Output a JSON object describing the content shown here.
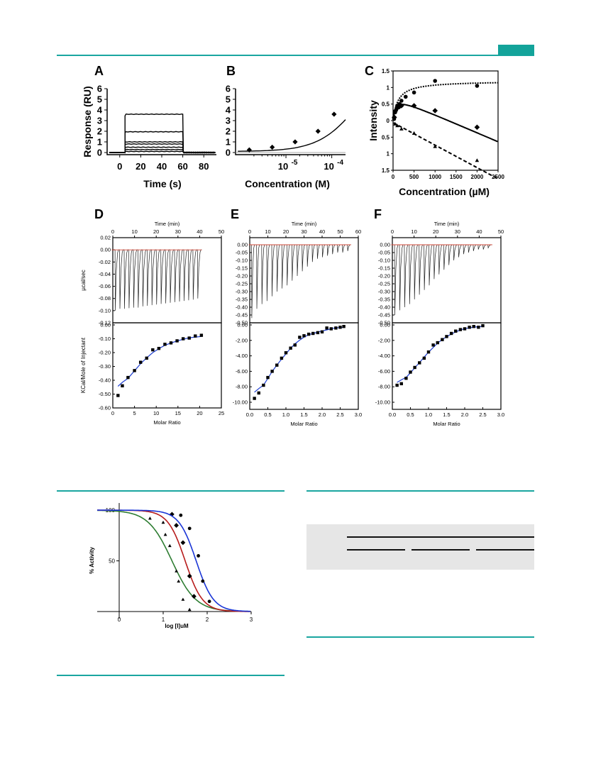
{
  "panels": {
    "A": {
      "letter": "A",
      "ylabel": "Response (RU)",
      "xlabel": "Time (s)"
    },
    "B": {
      "letter": "B",
      "xlabel": "Concentration (M)"
    },
    "C": {
      "letter": "C",
      "ylabel": "Intensity",
      "xlabel": "Concentration (µM)"
    },
    "D": {
      "letter": "D",
      "top_xlabel": "Time (min)",
      "top_ylabel": "µcal/sec",
      "bottom_ylabel": "KCal/Mole of Injectant",
      "bottom_xlabel": "Molar Ratio"
    },
    "E": {
      "letter": "E",
      "top_xlabel": "Time (min)",
      "bottom_xlabel": "Molar Ratio"
    },
    "F": {
      "letter": "F",
      "top_xlabel": "Time (min)",
      "bottom_xlabel": "Molar Ratio"
    },
    "G": {
      "ylabel": "% Activity",
      "xlabel": "log  [I]uM"
    }
  },
  "chart_data": [
    {
      "id": "A",
      "type": "line",
      "x_ticks": [
        "0",
        "20",
        "40",
        "60",
        "80"
      ],
      "y_ticks": [
        "0",
        "1",
        "2",
        "3",
        "4",
        "5",
        "6"
      ],
      "xlim": [
        -12,
        92
      ],
      "ylim": [
        -0.2,
        6
      ],
      "injection_window": [
        5,
        60
      ],
      "plateaus": [
        3.6,
        1.95,
        1.0,
        0.8,
        0.5,
        0.28,
        0.1
      ]
    },
    {
      "id": "B",
      "type": "scatter",
      "x_tick_labels": [
        "10 -5",
        "10 -4"
      ],
      "y_ticks": [
        "0",
        "1",
        "2",
        "3",
        "4",
        "5",
        "6"
      ],
      "log_x_range": [
        -6.1,
        -3.7
      ],
      "ylim": [
        -0.2,
        6
      ],
      "points": [
        [
          -5.8,
          0.25
        ],
        [
          -5.3,
          0.5
        ],
        [
          -4.8,
          1.0
        ],
        [
          -4.3,
          2.0
        ],
        [
          -3.95,
          3.6
        ]
      ]
    },
    {
      "id": "C",
      "type": "scatter",
      "x_ticks": [
        "0",
        "500",
        "1000",
        "1500",
        "2000",
        "2500"
      ],
      "y_ticks": [
        "1.5",
        "1",
        "0.5",
        "0",
        "0.5",
        "1",
        "1.5"
      ],
      "xlim": [
        0,
        2500
      ],
      "ylim": [
        -1.5,
        1.5
      ],
      "series": [
        {
          "marker": "circle",
          "points": [
            [
              25,
              0.05
            ],
            [
              50,
              0.25
            ],
            [
              100,
              0.45
            ],
            [
              150,
              0.5
            ],
            [
              200,
              0.6
            ],
            [
              300,
              0.72
            ],
            [
              500,
              0.85
            ],
            [
              1000,
              1.2
            ],
            [
              2000,
              1.05
            ]
          ]
        },
        {
          "marker": "diamond",
          "points": [
            [
              30,
              0.1
            ],
            [
              60,
              0.3
            ],
            [
              100,
              0.38
            ],
            [
              150,
              0.42
            ],
            [
              200,
              0.45
            ],
            [
              500,
              0.45
            ],
            [
              1000,
              0.3
            ],
            [
              2000,
              -0.2
            ]
          ]
        },
        {
          "marker": "triangle",
          "points": [
            [
              50,
              -0.1
            ],
            [
              100,
              -0.15
            ],
            [
              200,
              -0.25
            ],
            [
              500,
              -0.38
            ],
            [
              1000,
              -0.78
            ],
            [
              2000,
              -1.2
            ]
          ]
        }
      ]
    },
    {
      "id": "D",
      "type": "line",
      "top_x_ticks": [
        "0",
        "10",
        "20",
        "30",
        "40",
        "50"
      ],
      "top_y_ticks": [
        "0.02",
        "0.00",
        "-0.02",
        "-0.04",
        "-0.06",
        "-0.08",
        "-0.10",
        "-0.12"
      ],
      "bottom_x_ticks": [
        "0",
        "5",
        "10",
        "15",
        "20",
        "25"
      ],
      "bottom_y_ticks": [
        "0.00",
        "-0.10",
        "-0.20",
        "-0.30",
        "-0.40",
        "-0.50",
        "-0.60"
      ],
      "peaks": [
        -0.1,
        -0.097,
        -0.097,
        -0.096,
        -0.095,
        -0.095,
        -0.093,
        -0.092,
        -0.091,
        -0.09,
        -0.089,
        -0.088,
        -0.087,
        -0.086,
        -0.085,
        -0.084,
        -0.083,
        -0.082,
        -0.08
      ],
      "points": [
        [
          1.2,
          -0.51
        ],
        [
          2.2,
          -0.44
        ],
        [
          3.5,
          -0.38
        ],
        [
          5,
          -0.33
        ],
        [
          6.4,
          -0.27
        ],
        [
          7.8,
          -0.24
        ],
        [
          9.2,
          -0.18
        ],
        [
          10.6,
          -0.17
        ],
        [
          12,
          -0.14
        ],
        [
          13.4,
          -0.13
        ],
        [
          14.8,
          -0.115
        ],
        [
          16.2,
          -0.1
        ],
        [
          17.6,
          -0.095
        ],
        [
          19,
          -0.08
        ],
        [
          20.4,
          -0.075
        ]
      ]
    },
    {
      "id": "E",
      "type": "line",
      "top_x_ticks": [
        "0",
        "10",
        "20",
        "30",
        "40",
        "50",
        "60"
      ],
      "top_y_ticks": [
        "0.00",
        "-0.05",
        "-0.10",
        "-0.15",
        "-0.20",
        "-0.25",
        "-0.30",
        "-0.35",
        "-0.40",
        "-0.45",
        "-0.50"
      ],
      "bottom_x_ticks": [
        "0.0",
        "0.5",
        "1.0",
        "1.5",
        "2.0",
        "2.5",
        "3.0"
      ],
      "bottom_y_ticks": [
        "0.00",
        "-2.00",
        "-4.00",
        "-6.00",
        "-8.00",
        "-10.00"
      ],
      "peaks": [
        -0.47,
        -0.41,
        -0.38,
        -0.36,
        -0.33,
        -0.3,
        -0.28,
        -0.26,
        -0.23,
        -0.2,
        -0.17,
        -0.14,
        -0.11,
        -0.09,
        -0.08,
        -0.07,
        -0.06,
        -0.05,
        -0.05,
        -0.04
      ],
      "points": [
        [
          0.13,
          -9.5
        ],
        [
          0.25,
          -8.8
        ],
        [
          0.38,
          -7.8
        ],
        [
          0.5,
          -6.8
        ],
        [
          0.62,
          -6.0
        ],
        [
          0.75,
          -5.2
        ],
        [
          0.88,
          -4.3
        ],
        [
          1.0,
          -3.6
        ],
        [
          1.13,
          -3.0
        ],
        [
          1.25,
          -2.6
        ],
        [
          1.38,
          -1.6
        ],
        [
          1.5,
          -1.4
        ],
        [
          1.63,
          -1.2
        ],
        [
          1.75,
          -1.1
        ],
        [
          1.88,
          -1.0
        ],
        [
          2.0,
          -0.9
        ],
        [
          2.13,
          -0.4
        ],
        [
          2.25,
          -0.5
        ],
        [
          2.38,
          -0.4
        ],
        [
          2.5,
          -0.3
        ],
        [
          2.6,
          -0.2
        ]
      ]
    },
    {
      "id": "F",
      "type": "line",
      "top_x_ticks": [
        "0",
        "10",
        "20",
        "30",
        "40",
        "50"
      ],
      "top_y_ticks": [
        "0.00",
        "-0.05",
        "-0.10",
        "-0.15",
        "-0.20",
        "-0.25",
        "-0.30",
        "-0.35",
        "-0.40",
        "-0.45",
        "-0.50"
      ],
      "bottom_x_ticks": [
        "0.0",
        "0.5",
        "1.0",
        "1.5",
        "2.0",
        "2.5",
        "3.0"
      ],
      "bottom_y_ticks": [
        "0.00",
        "-2.00",
        "-4.00",
        "-6.00",
        "-8.00",
        "-10.00"
      ],
      "peaks": [
        -0.45,
        -0.42,
        -0.4,
        -0.38,
        -0.35,
        -0.32,
        -0.29,
        -0.26,
        -0.22,
        -0.19,
        -0.16,
        -0.13,
        -0.1,
        -0.08,
        -0.06,
        -0.05,
        -0.04,
        -0.03,
        -0.03,
        -0.02
      ],
      "points": [
        [
          0.13,
          -7.8
        ],
        [
          0.25,
          -7.6
        ],
        [
          0.38,
          -6.9
        ],
        [
          0.5,
          -6.1
        ],
        [
          0.62,
          -5.5
        ],
        [
          0.75,
          -4.9
        ],
        [
          0.88,
          -4.3
        ],
        [
          1.0,
          -3.5
        ],
        [
          1.13,
          -2.6
        ],
        [
          1.25,
          -2.3
        ],
        [
          1.38,
          -1.9
        ],
        [
          1.5,
          -1.5
        ],
        [
          1.63,
          -1.1
        ],
        [
          1.75,
          -0.8
        ],
        [
          1.88,
          -0.6
        ],
        [
          2.0,
          -0.5
        ],
        [
          2.13,
          -0.3
        ],
        [
          2.25,
          -0.2
        ],
        [
          2.38,
          -0.3
        ],
        [
          2.5,
          -0.1
        ]
      ]
    },
    {
      "id": "G",
      "type": "line",
      "x_ticks": [
        "0",
        "1",
        "2",
        "3"
      ],
      "y_ticks": [
        "100",
        "50"
      ],
      "xlim": [
        -0.5,
        3
      ],
      "ylim": [
        0,
        105
      ],
      "series": [
        {
          "color": "#2e7d32",
          "marker": "triangle",
          "ic50_log": 1.2,
          "hill": 1.6,
          "points": [
            [
              0.7,
              92
            ],
            [
              1.0,
              88
            ],
            [
              1.05,
              76
            ],
            [
              1.15,
              65
            ],
            [
              1.3,
              40
            ],
            [
              1.35,
              30
            ],
            [
              1.45,
              12
            ],
            [
              1.6,
              2
            ]
          ]
        },
        {
          "color": "#b71c1c",
          "marker": "diamond",
          "ic50_log": 1.5,
          "hill": 2.2,
          "points": [
            [
              1.2,
              96
            ],
            [
              1.3,
              85
            ],
            [
              1.45,
              68
            ],
            [
              1.6,
              35
            ],
            [
              1.7,
              15
            ]
          ]
        },
        {
          "color": "#1a35d6",
          "marker": "circle",
          "ic50_log": 1.75,
          "hill": 2.2,
          "points": [
            [
              1.4,
              95
            ],
            [
              1.6,
              82
            ],
            [
              1.8,
              55
            ],
            [
              1.9,
              30
            ],
            [
              2.05,
              10
            ]
          ]
        }
      ]
    }
  ]
}
